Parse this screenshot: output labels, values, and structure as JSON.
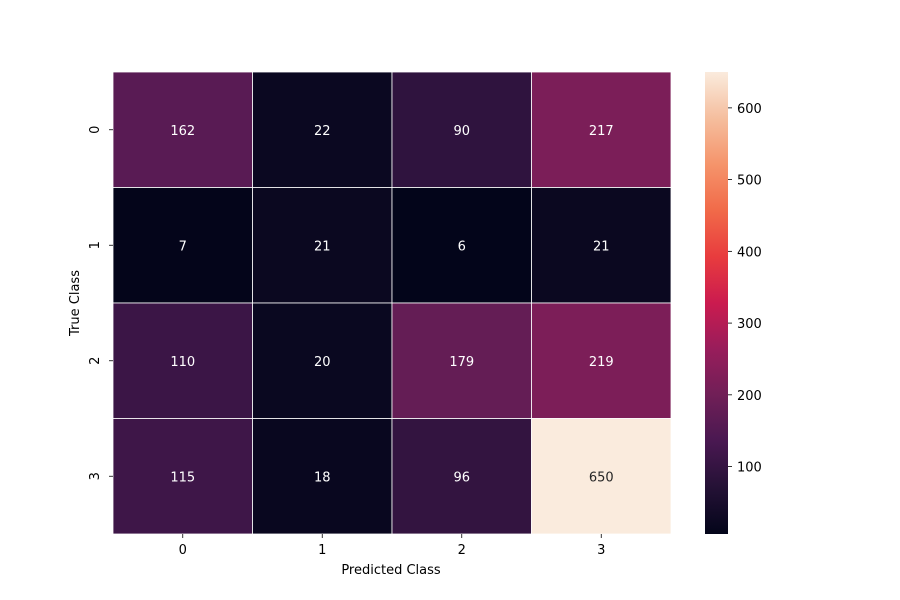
{
  "chart_data": {
    "type": "heatmap",
    "x_categories": [
      "0",
      "1",
      "2",
      "3"
    ],
    "y_categories": [
      "0",
      "1",
      "2",
      "3"
    ],
    "values": [
      [
        162,
        22,
        90,
        217
      ],
      [
        7,
        21,
        6,
        21
      ],
      [
        110,
        20,
        179,
        219
      ],
      [
        115,
        18,
        96,
        650
      ]
    ],
    "xlabel": "Predicted Class",
    "ylabel": "True Class",
    "colormap": "rocket",
    "colorbar": {
      "vmin": 6,
      "vmax": 650,
      "ticks": [
        100,
        200,
        300,
        400,
        500,
        600
      ]
    },
    "annotations": true,
    "annotation_colors": {
      "dark_cell": "#ffffff",
      "light_cell": "#262626"
    },
    "cell_border_color": "#ffffff",
    "grid": false
  }
}
